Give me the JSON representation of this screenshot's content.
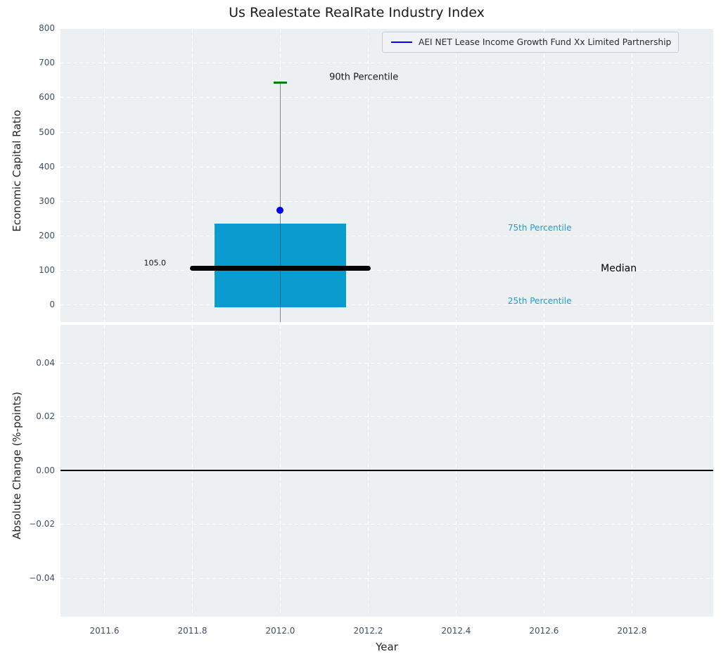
{
  "colors": {
    "figure_bg": "#ffffff",
    "plot_bg": "#edf0f2",
    "grid": "#ffffff",
    "tick_label": "#3e5064",
    "text": "#262626",
    "box_fill": "#0a9ccf",
    "cyan_text": "#1b9ed9",
    "median_line": "#000000",
    "p90_cap": "#008000",
    "whisker": "#8a8a8a",
    "fund_dot": "#0000ee",
    "legend_line": "#0000ff",
    "zero_line": "#000000"
  },
  "chart_data": [
    {
      "type": "box",
      "title": "Us Realestate RealRate Industry Index",
      "ylabel": "Economic Capital Ratio",
      "xlim": [
        2011.5,
        2012.985
      ],
      "ylim": [
        -50,
        798
      ],
      "grid": "white dashed, on",
      "legend": {
        "label": "AEI NET Lease Income Growth Fund Xx Limited Partnership",
        "color": "#0000ff",
        "position": "upper right"
      },
      "yticks": [
        {
          "v": 0,
          "label": "0"
        },
        {
          "v": 100,
          "label": "100"
        },
        {
          "v": 200,
          "label": "200"
        },
        {
          "v": 300,
          "label": "300"
        },
        {
          "v": 400,
          "label": "400"
        },
        {
          "v": 500,
          "label": "500"
        },
        {
          "v": 600,
          "label": "600"
        },
        {
          "v": 700,
          "label": "700"
        },
        {
          "v": 800,
          "label": "800"
        }
      ],
      "box": {
        "x_center": 2012.0,
        "x_left": 2011.85,
        "x_right": 2012.15,
        "p25": -7,
        "median": 105,
        "p75": 235,
        "p90": 642,
        "fund_value": 274,
        "median_line_x0": 2011.8,
        "median_line_x1": 2012.2,
        "whisker_low_clip": -50,
        "p90_cap_halfwidth": 0.015
      },
      "annotations": [
        {
          "text": "105.0",
          "x": 2011.74,
          "y": 105,
          "dy": -8,
          "anchor": "right",
          "color": "#111111",
          "size": 11
        },
        {
          "text": "90th Percentile",
          "x": 2012.19,
          "y": 658,
          "dy": 0,
          "anchor": "center",
          "color": "#1a1a1a",
          "size": 13
        },
        {
          "text": "75th Percentile",
          "x": 2012.59,
          "y": 223,
          "dy": 0,
          "anchor": "center",
          "color": "#1b9ed9",
          "size": 12
        },
        {
          "text": "Median",
          "x": 2012.77,
          "y": 105,
          "dy": 0,
          "anchor": "center",
          "color": "#000000",
          "size": 14
        },
        {
          "text": "25th Percentile",
          "x": 2012.59,
          "y": 10,
          "dy": 0,
          "anchor": "center",
          "color": "#1b9ed9",
          "size": 12
        }
      ]
    },
    {
      "type": "line",
      "ylabel": "Absolute Change (%-points)",
      "xlabel": "Year",
      "xlim": [
        2011.5,
        2012.985
      ],
      "ylim": [
        -0.0545,
        0.054
      ],
      "zero_line": {
        "y": 0.0,
        "color": "#000000"
      },
      "yticks": [
        {
          "v": 0.04,
          "label": "0.04"
        },
        {
          "v": 0.02,
          "label": "0.02"
        },
        {
          "v": 0.0,
          "label": "0.00"
        },
        {
          "v": -0.02,
          "label": "−0.02"
        },
        {
          "v": -0.04,
          "label": "−0.04"
        }
      ],
      "xticks": [
        {
          "v": 2011.6,
          "label": "2011.6"
        },
        {
          "v": 2011.8,
          "label": "2011.8"
        },
        {
          "v": 2012.0,
          "label": "2012.0"
        },
        {
          "v": 2012.2,
          "label": "2012.2"
        },
        {
          "v": 2012.4,
          "label": "2012.4"
        },
        {
          "v": 2012.6,
          "label": "2012.6"
        },
        {
          "v": 2012.8,
          "label": "2012.8"
        }
      ]
    }
  ]
}
